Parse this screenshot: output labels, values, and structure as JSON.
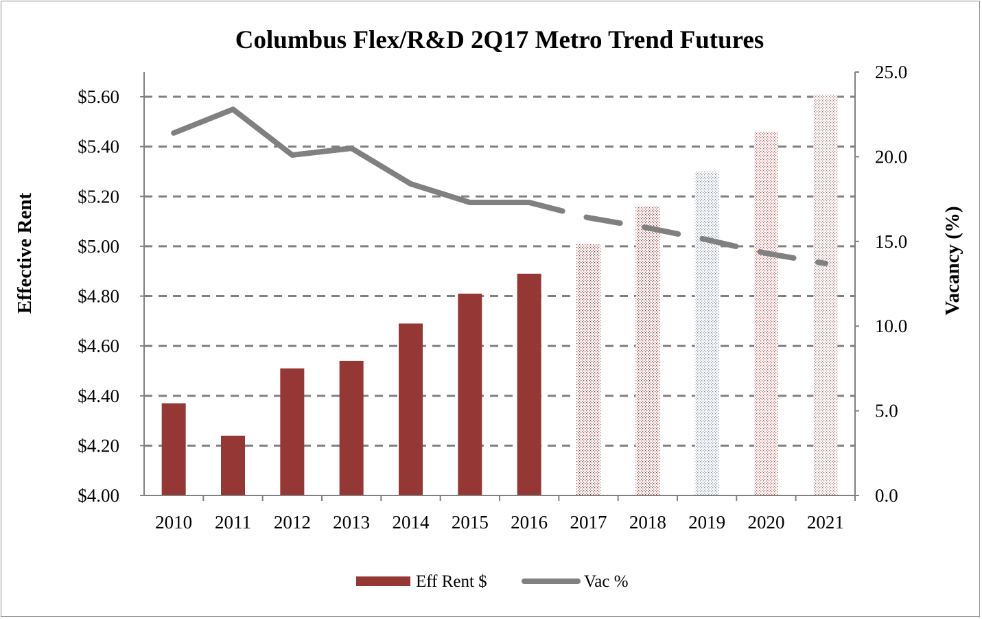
{
  "chart_data": {
    "type": "bar",
    "title": "Columbus Flex/R&D 2Q17 Metro Trend Futures",
    "ylabel": "Effective Rent",
    "y2label": "Vacancy (%)",
    "xlabel": "",
    "categories": [
      "2010",
      "2011",
      "2012",
      "2013",
      "2014",
      "2015",
      "2016",
      "2017",
      "2018",
      "2019",
      "2020",
      "2021"
    ],
    "ylim": [
      4.0,
      5.6
    ],
    "yticks": [
      "$4.00",
      "$4.20",
      "$4.40",
      "$4.60",
      "$4.80",
      "$5.00",
      "$5.20",
      "$5.40",
      "$5.60"
    ],
    "y2lim": [
      0,
      25
    ],
    "y2ticks": [
      "0.0",
      "5.0",
      "10.0",
      "15.0",
      "20.0",
      "25.0"
    ],
    "grid": true,
    "legend_position": "bottom",
    "series": [
      {
        "name": "Eff Rent $",
        "type": "bar",
        "axis": "left",
        "color": "#953735",
        "values": [
          4.37,
          4.24,
          4.51,
          4.54,
          4.69,
          4.81,
          4.89,
          5.01,
          5.16,
          5.3,
          5.46,
          5.61
        ],
        "forecast_from": "2017"
      },
      {
        "name": "Vac %",
        "type": "line",
        "axis": "right",
        "color": "#808080",
        "values": [
          21.4,
          22.8,
          20.1,
          20.5,
          18.4,
          17.3,
          17.3,
          16.4,
          15.8,
          15.1,
          14.3,
          13.7
        ],
        "forecast_from": "2016"
      }
    ],
    "forecast_bar_colors": [
      "#953735",
      "#953735",
      "#7f8ca0",
      "#c0504d",
      "#a07070"
    ]
  }
}
